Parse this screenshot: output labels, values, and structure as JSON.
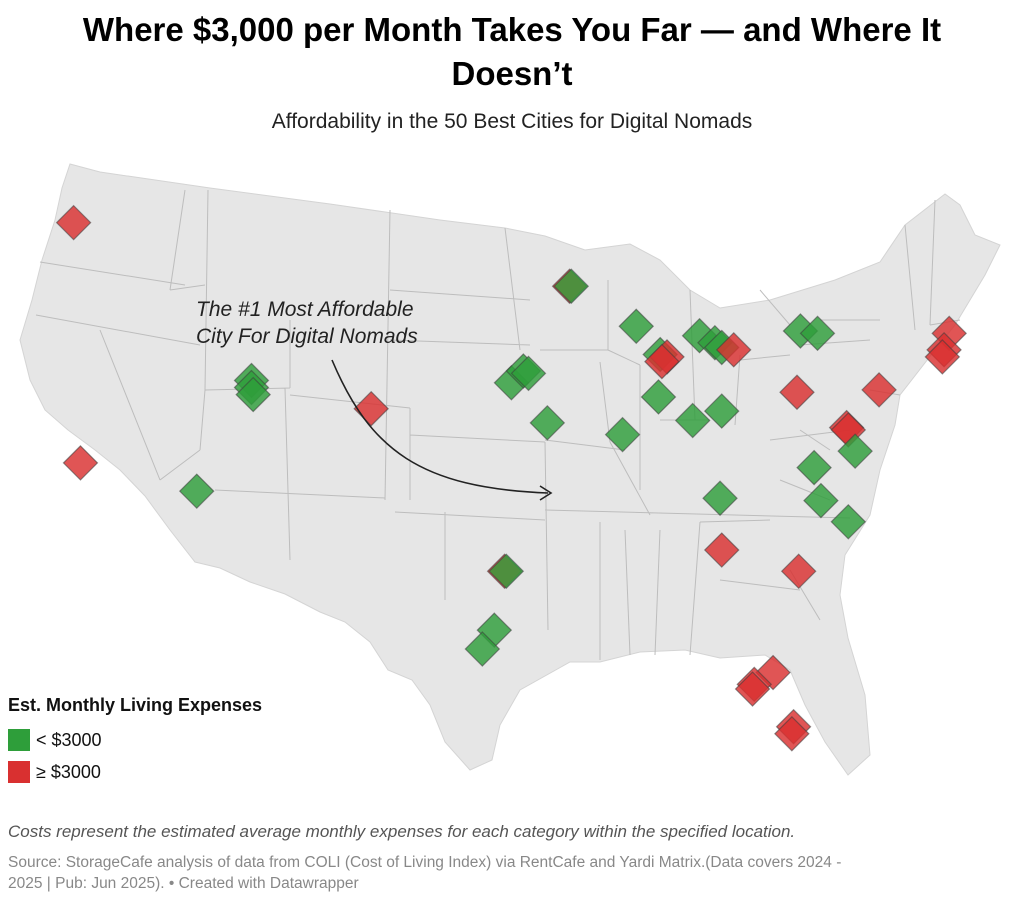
{
  "title": "Where $3,000 per Month Takes You Far — and Where It Doesn’t",
  "subtitle": "Affordability in the 50 Best Cities for Digital Nomads",
  "annotation_line1": "The #1 Most Affordable",
  "annotation_line2": "City For Digital Nomads",
  "legend": {
    "title": "Est. Monthly Living Expenses",
    "items": [
      {
        "label": "< $3000",
        "color": "#2e9e3a"
      },
      {
        "label": "≥ $3000",
        "color": "#d93030"
      }
    ]
  },
  "note": "Costs represent the estimated average monthly expenses for each category within the specified location.",
  "source_line1": "Source: StorageCafe analysis of data from COLI (Cost of Living Index) via RentCafe and Yardi Matrix.(Data covers 2024 -",
  "source_line2": "2025 | Pub: Jun 2025). • Created with Datawrapper",
  "colors": {
    "under": "#2e9e3a",
    "over": "#d93030",
    "land": "#e6e6e6",
    "border": "#b9b9b9"
  },
  "markers": [
    {
      "lon": -122.3,
      "lat": 47.6,
      "cat": "over"
    },
    {
      "lon": -121.9,
      "lat": 37.4,
      "cat": "over"
    },
    {
      "lon": -115.1,
      "lat": 36.2,
      "cat": "under"
    },
    {
      "lon": -111.9,
      "lat": 40.9,
      "cat": "under"
    },
    {
      "lon": -111.9,
      "lat": 40.6,
      "cat": "under"
    },
    {
      "lon": -111.8,
      "lat": 40.3,
      "cat": "under"
    },
    {
      "lon": -104.9,
      "lat": 39.7,
      "cat": "over"
    },
    {
      "lon": -96.7,
      "lat": 40.8,
      "cat": "under"
    },
    {
      "lon": -96.0,
      "lat": 41.3,
      "cat": "under"
    },
    {
      "lon": -95.7,
      "lat": 41.2,
      "cat": "under"
    },
    {
      "lon": -93.3,
      "lat": 44.9,
      "cat": "over"
    },
    {
      "lon": -93.2,
      "lat": 44.9,
      "cat": "under"
    },
    {
      "lon": -94.6,
      "lat": 39.1,
      "cat": "under"
    },
    {
      "lon": -97.1,
      "lat": 32.8,
      "cat": "over"
    },
    {
      "lon": -97.0,
      "lat": 32.8,
      "cat": "under"
    },
    {
      "lon": -97.7,
      "lat": 30.3,
      "cat": "under"
    },
    {
      "lon": -98.4,
      "lat": 29.5,
      "cat": "under"
    },
    {
      "lon": -89.4,
      "lat": 43.2,
      "cat": "under"
    },
    {
      "lon": -88.0,
      "lat": 42.0,
      "cat": "under"
    },
    {
      "lon": -87.6,
      "lat": 41.9,
      "cat": "over"
    },
    {
      "lon": -87.9,
      "lat": 41.7,
      "cat": "over"
    },
    {
      "lon": -88.1,
      "lat": 40.2,
      "cat": "under"
    },
    {
      "lon": -90.2,
      "lat": 38.6,
      "cat": "under"
    },
    {
      "lon": -85.7,
      "lat": 42.8,
      "cat": "under"
    },
    {
      "lon": -84.8,
      "lat": 42.5,
      "cat": "under"
    },
    {
      "lon": -84.4,
      "lat": 42.3,
      "cat": "under"
    },
    {
      "lon": -83.7,
      "lat": 42.2,
      "cat": "over"
    },
    {
      "lon": -86.1,
      "lat": 39.2,
      "cat": "under"
    },
    {
      "lon": -84.4,
      "lat": 39.6,
      "cat": "under"
    },
    {
      "lon": -79.8,
      "lat": 43.0,
      "cat": "under"
    },
    {
      "lon": -78.8,
      "lat": 42.9,
      "cat": "under"
    },
    {
      "lon": -80.0,
      "lat": 40.4,
      "cat": "over"
    },
    {
      "lon": -75.2,
      "lat": 40.5,
      "cat": "over"
    },
    {
      "lon": -77.1,
      "lat": 38.9,
      "cat": "over"
    },
    {
      "lon": -77.0,
      "lat": 38.8,
      "cat": "over"
    },
    {
      "lon": -76.6,
      "lat": 37.9,
      "cat": "under"
    },
    {
      "lon": -79.0,
      "lat": 37.2,
      "cat": "under"
    },
    {
      "lon": -78.6,
      "lat": 35.8,
      "cat": "under"
    },
    {
      "lon": -77.0,
      "lat": 34.9,
      "cat": "under"
    },
    {
      "lon": -84.5,
      "lat": 35.9,
      "cat": "under"
    },
    {
      "lon": -84.4,
      "lat": 33.7,
      "cat": "over"
    },
    {
      "lon": -79.9,
      "lat": 32.8,
      "cat": "over"
    },
    {
      "lon": -71.1,
      "lat": 42.9,
      "cat": "over"
    },
    {
      "lon": -71.4,
      "lat": 42.2,
      "cat": "over"
    },
    {
      "lon": -71.5,
      "lat": 41.9,
      "cat": "over"
    },
    {
      "lon": -81.4,
      "lat": 28.5,
      "cat": "over"
    },
    {
      "lon": -82.5,
      "lat": 28.0,
      "cat": "over"
    },
    {
      "lon": -82.6,
      "lat": 27.8,
      "cat": "over"
    },
    {
      "lon": -80.2,
      "lat": 26.2,
      "cat": "over"
    },
    {
      "lon": -80.3,
      "lat": 25.9,
      "cat": "over"
    }
  ]
}
